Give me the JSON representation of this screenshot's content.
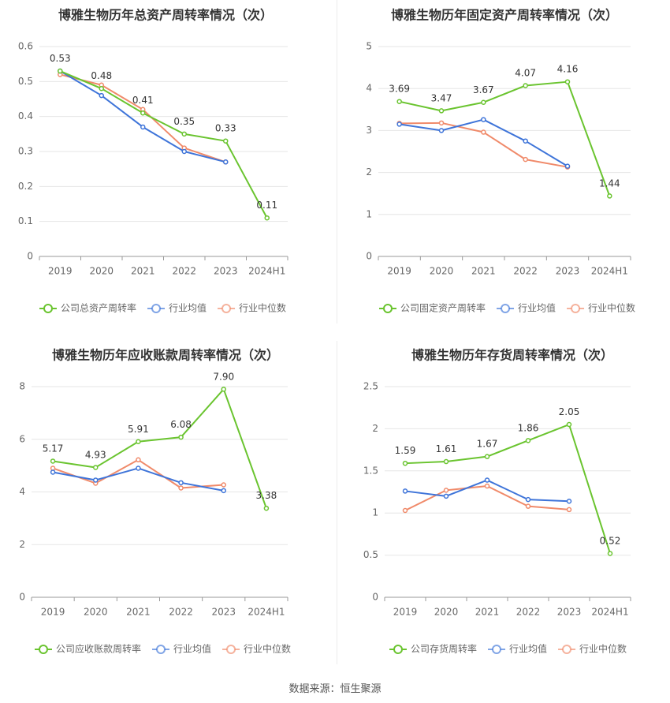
{
  "source": "数据来源：恒生聚源",
  "colors": {
    "company": "#6ac42f",
    "avg": "#3e74d9",
    "median": "#f08a6a",
    "grid": "#e6e6e6",
    "axis": "#999999",
    "text": "#666666",
    "title": "#333333"
  },
  "chart_data": [
    {
      "type": "line",
      "title": "博雅生物历年总资产周转率情况（次）",
      "categories": [
        "2019",
        "2020",
        "2021",
        "2022",
        "2023",
        "2024H1"
      ],
      "ylim": [
        0,
        0.6
      ],
      "yticks": [
        "0",
        "0.1",
        "0.2",
        "0.3",
        "0.4",
        "0.5",
        "0.6"
      ],
      "grid": true,
      "legend_position": "bottom",
      "series": [
        {
          "name": "公司总资产周转率",
          "role": "company",
          "values": [
            0.53,
            0.48,
            0.41,
            0.35,
            0.33,
            0.11
          ],
          "labels": [
            "0.53",
            "0.48",
            "0.41",
            "0.35",
            "0.33",
            "0.11"
          ]
        },
        {
          "name": "行业均值",
          "role": "avg",
          "values": [
            0.53,
            0.46,
            0.37,
            0.3,
            0.27,
            null
          ]
        },
        {
          "name": "行业中位数",
          "role": "median",
          "values": [
            0.52,
            0.49,
            0.42,
            0.31,
            0.27,
            null
          ]
        }
      ]
    },
    {
      "type": "line",
      "title": "博雅生物历年固定资产周转率情况（次）",
      "categories": [
        "2019",
        "2020",
        "2021",
        "2022",
        "2023",
        "2024H1"
      ],
      "ylim": [
        0,
        5
      ],
      "yticks": [
        "0",
        "1",
        "2",
        "3",
        "4",
        "5"
      ],
      "grid": true,
      "legend_position": "bottom",
      "series": [
        {
          "name": "公司固定资产周转率",
          "role": "company",
          "values": [
            3.69,
            3.47,
            3.67,
            4.07,
            4.16,
            1.44
          ],
          "labels": [
            "3.69",
            "3.47",
            "3.67",
            "4.07",
            "4.16",
            "1.44"
          ]
        },
        {
          "name": "行业均值",
          "role": "avg",
          "values": [
            3.15,
            3.0,
            3.26,
            2.75,
            2.15,
            null
          ]
        },
        {
          "name": "行业中位数",
          "role": "median",
          "values": [
            3.17,
            3.18,
            2.96,
            2.31,
            2.13,
            null
          ]
        }
      ]
    },
    {
      "type": "line",
      "title": "博雅生物历年应收账款周转率情况（次）",
      "categories": [
        "2019",
        "2020",
        "2021",
        "2022",
        "2023",
        "2024H1"
      ],
      "ylim": [
        0,
        8
      ],
      "yticks": [
        "0",
        "2",
        "4",
        "6",
        "8"
      ],
      "grid": true,
      "legend_position": "bottom",
      "series": [
        {
          "name": "公司应收账款周转率",
          "role": "company",
          "values": [
            5.17,
            4.93,
            5.91,
            6.08,
            7.9,
            3.38
          ],
          "labels": [
            "5.17",
            "4.93",
            "5.91",
            "6.08",
            "7.90",
            "3.38"
          ]
        },
        {
          "name": "行业均值",
          "role": "avg",
          "values": [
            4.75,
            4.45,
            4.9,
            4.35,
            4.05,
            null
          ]
        },
        {
          "name": "行业中位数",
          "role": "median",
          "values": [
            4.9,
            4.33,
            5.22,
            4.15,
            4.27,
            null
          ]
        }
      ]
    },
    {
      "type": "line",
      "title": "博雅生物历年存货周转率情况（次）",
      "categories": [
        "2019",
        "2020",
        "2021",
        "2022",
        "2023",
        "2024H1"
      ],
      "ylim": [
        0,
        2.5
      ],
      "yticks": [
        "0",
        "0.5",
        "1",
        "1.5",
        "2",
        "2.5"
      ],
      "grid": true,
      "legend_position": "bottom",
      "series": [
        {
          "name": "公司存货周转率",
          "role": "company",
          "values": [
            1.59,
            1.61,
            1.67,
            1.86,
            2.05,
            0.52
          ],
          "labels": [
            "1.59",
            "1.61",
            "1.67",
            "1.86",
            "2.05",
            "0.52"
          ]
        },
        {
          "name": "行业均值",
          "role": "avg",
          "values": [
            1.26,
            1.2,
            1.39,
            1.16,
            1.14,
            null
          ]
        },
        {
          "name": "行业中位数",
          "role": "median",
          "values": [
            1.03,
            1.27,
            1.32,
            1.08,
            1.04,
            null
          ]
        }
      ]
    }
  ]
}
